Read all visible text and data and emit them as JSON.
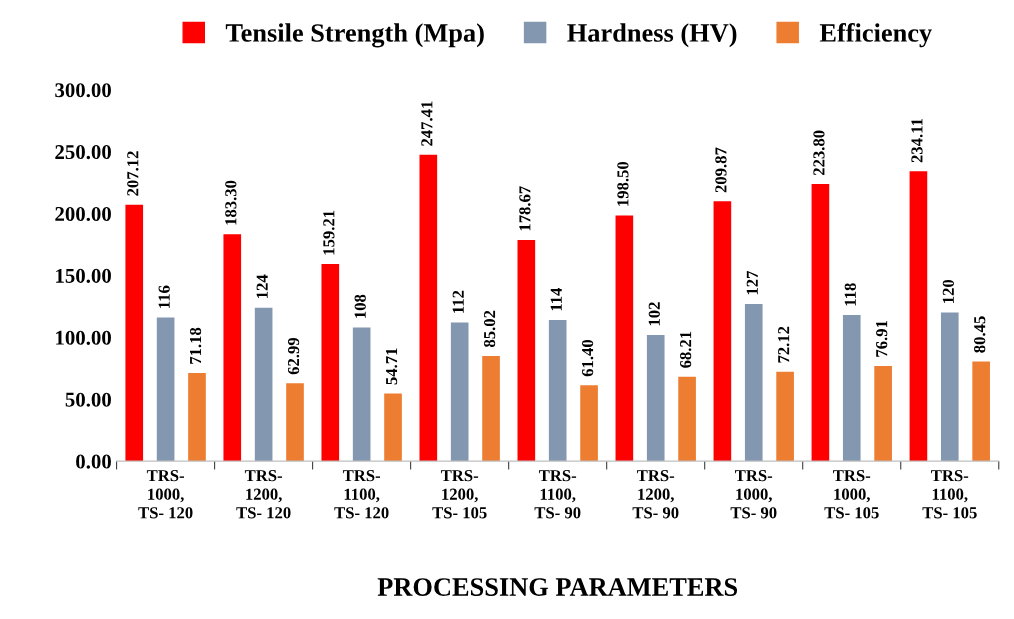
{
  "chart_data": {
    "type": "bar",
    "categories": [
      "TRS-\n1000,\nTS- 120",
      "TRS-\n1200,\nTS- 120",
      "TRS-\n1100,\nTS- 120",
      "TRS-\n1200,\nTS- 105",
      "TRS-\n1100,\nTS- 90",
      "TRS-\n1200,\nTS- 90",
      "TRS-\n1000,\nTS- 90",
      "TRS-\n1000,\nTS- 105",
      "TRS-\n1100,\nTS- 105"
    ],
    "series": [
      {
        "name": "Tensile Strength (Mpa)",
        "color": "#ff0000",
        "values": [
          207.12,
          183.3,
          159.21,
          247.41,
          178.67,
          198.5,
          209.87,
          223.8,
          234.11
        ],
        "value_labels": [
          "207.12",
          "183.30",
          "159.21",
          "247.41",
          "178.67",
          "198.50",
          "209.87",
          "223.80",
          "234.11"
        ]
      },
      {
        "name": "Hardness (HV)",
        "color": "#8497b0",
        "values": [
          116,
          124,
          108,
          112,
          114,
          102,
          127,
          118,
          120
        ],
        "value_labels": [
          "116",
          "124",
          "108",
          "112",
          "114",
          "102",
          "127",
          "118",
          "120"
        ]
      },
      {
        "name": "Efficiency",
        "color": "#ed7d31",
        "values": [
          71.18,
          62.99,
          54.71,
          85.02,
          61.4,
          68.21,
          72.12,
          76.91,
          80.45
        ],
        "value_labels": [
          "71.18",
          "62.99",
          "54.71",
          "85.02",
          "61.40",
          "68.21",
          "72.12",
          "76.91",
          "80.45"
        ]
      }
    ],
    "xlabel": "PROCESSING PARAMETERS",
    "ylim": [
      0,
      300
    ],
    "yticks": [
      {
        "value": 0,
        "label": "0.00"
      },
      {
        "value": 50,
        "label": "50.00"
      },
      {
        "value": 100,
        "label": "100.00"
      },
      {
        "value": 150,
        "label": "150.00"
      },
      {
        "value": 200,
        "label": "200.00"
      },
      {
        "value": 250,
        "label": "250.00"
      },
      {
        "value": 300,
        "label": "300.00"
      }
    ],
    "grid": false,
    "legend": "top"
  }
}
